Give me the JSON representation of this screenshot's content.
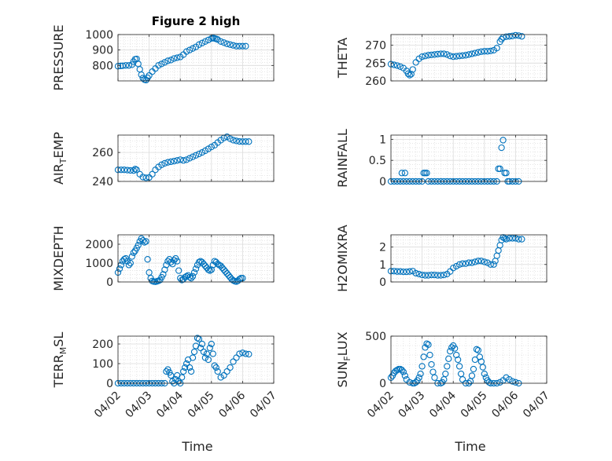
{
  "figure": {
    "title": "Figure 2 high",
    "x_ticks": [
      "04/02",
      "04/03",
      "04/04",
      "04/05",
      "04/06",
      "04/07"
    ],
    "xlabel": "Time",
    "marker_color": "#0072BD"
  },
  "chart_data": [
    {
      "type": "scatter",
      "id": "pressure",
      "title": "Figure 2 high",
      "ylabel": "PRESSURE",
      "xlabel": "",
      "xlim": [
        0,
        5
      ],
      "ylim": [
        700,
        1000
      ],
      "yticks": [
        800,
        900,
        1000
      ],
      "x": [
        0,
        0.08,
        0.15,
        0.25,
        0.35,
        0.45,
        0.5,
        0.55,
        0.6,
        0.65,
        0.7,
        0.75,
        0.8,
        0.85,
        0.9,
        0.95,
        1.0,
        1.1,
        1.2,
        1.3,
        1.4,
        1.5,
        1.6,
        1.7,
        1.8,
        1.9,
        2.0,
        2.1,
        2.2,
        2.3,
        2.4,
        2.5,
        2.6,
        2.7,
        2.8,
        2.9,
        3.0,
        3.05,
        3.1,
        3.15,
        3.2,
        3.3,
        3.4,
        3.5,
        3.6,
        3.7,
        3.8,
        3.9,
        4.0,
        4.1
      ],
      "y": [
        795,
        797,
        798,
        800,
        800,
        805,
        825,
        840,
        842,
        810,
        775,
        740,
        718,
        708,
        705,
        720,
        735,
        760,
        780,
        800,
        810,
        820,
        830,
        835,
        845,
        850,
        855,
        870,
        890,
        900,
        910,
        920,
        935,
        945,
        955,
        965,
        975,
        978,
        975,
        972,
        968,
        955,
        948,
        940,
        935,
        930,
        925,
        925,
        925,
        925
      ]
    },
    {
      "type": "scatter",
      "id": "theta",
      "title": "",
      "ylabel": "THETA",
      "xlabel": "",
      "xlim": [
        0,
        5
      ],
      "ylim": [
        260,
        273
      ],
      "yticks": [
        260,
        265,
        270
      ],
      "x": [
        0,
        0.1,
        0.2,
        0.3,
        0.4,
        0.5,
        0.55,
        0.6,
        0.65,
        0.7,
        0.8,
        0.9,
        1.0,
        1.1,
        1.2,
        1.3,
        1.4,
        1.5,
        1.6,
        1.7,
        1.8,
        1.9,
        2.0,
        2.1,
        2.2,
        2.3,
        2.4,
        2.5,
        2.6,
        2.7,
        2.8,
        2.9,
        3.0,
        3.1,
        3.2,
        3.3,
        3.4,
        3.5,
        3.55,
        3.6,
        3.7,
        3.8,
        3.9,
        4.0,
        4.1,
        4.2
      ],
      "y": [
        264.7,
        264.5,
        264.3,
        264,
        263.6,
        262.8,
        262,
        261.6,
        261.9,
        263.2,
        265.2,
        266.2,
        266.8,
        267,
        267.2,
        267.3,
        267.4,
        267.5,
        267.6,
        267.6,
        267.4,
        267,
        266.8,
        266.9,
        267,
        267.1,
        267.2,
        267.4,
        267.6,
        267.8,
        268,
        268.2,
        268.3,
        268.3,
        268.4,
        268.6,
        269.2,
        271,
        271.7,
        272.2,
        272.4,
        272.5,
        272.6,
        272.8,
        272.7,
        272.5
      ]
    },
    {
      "type": "scatter",
      "id": "air_temp",
      "title": "",
      "ylabel": "AIR_TEMP",
      "xlabel": "",
      "xlim": [
        0,
        5
      ],
      "ylim": [
        240,
        272
      ],
      "yticks": [
        240,
        260
      ],
      "x": [
        0,
        0.1,
        0.2,
        0.3,
        0.4,
        0.5,
        0.55,
        0.6,
        0.7,
        0.8,
        0.9,
        1.0,
        1.1,
        1.2,
        1.3,
        1.4,
        1.5,
        1.6,
        1.7,
        1.8,
        1.9,
        2.0,
        2.1,
        2.2,
        2.3,
        2.4,
        2.5,
        2.6,
        2.7,
        2.8,
        2.9,
        3.0,
        3.1,
        3.2,
        3.3,
        3.4,
        3.5,
        3.6,
        3.7,
        3.8,
        3.9,
        4.0,
        4.1,
        4.2
      ],
      "y": [
        248,
        248,
        248,
        247.8,
        247.6,
        247.5,
        248.5,
        248,
        245,
        243,
        242.5,
        242.7,
        245,
        248,
        250,
        251.5,
        252.5,
        253.2,
        253.6,
        254,
        254.5,
        255,
        254.5,
        255,
        256,
        257,
        258,
        259,
        260,
        261.2,
        262.5,
        263.8,
        265,
        266.8,
        268.5,
        270,
        270.8,
        269.5,
        268.5,
        268,
        267.6,
        267.5,
        267.5,
        267.5
      ]
    },
    {
      "type": "scatter",
      "id": "rainfall",
      "title": "",
      "ylabel": "RAINFALL",
      "xlabel": "",
      "xlim": [
        0,
        5
      ],
      "ylim": [
        0,
        1.1
      ],
      "yticks": [
        0,
        0.5,
        1
      ],
      "x": [
        0,
        0.1,
        0.2,
        0.3,
        0.35,
        0.4,
        0.45,
        0.5,
        0.6,
        0.7,
        0.8,
        0.9,
        1.0,
        1.05,
        1.1,
        1.15,
        1.2,
        1.3,
        1.4,
        1.5,
        1.6,
        1.7,
        1.8,
        1.9,
        2.0,
        2.1,
        2.2,
        2.3,
        2.4,
        2.5,
        2.6,
        2.7,
        2.8,
        2.9,
        3.0,
        3.1,
        3.2,
        3.3,
        3.4,
        3.45,
        3.5,
        3.55,
        3.6,
        3.65,
        3.7,
        3.75,
        3.8,
        3.9,
        4.0,
        4.1
      ],
      "y": [
        0,
        0,
        0,
        0,
        0.2,
        0,
        0.2,
        0,
        0,
        0,
        0,
        0,
        0,
        0.2,
        0.2,
        0.2,
        0,
        0,
        0,
        0,
        0,
        0,
        0,
        0,
        0,
        0,
        0,
        0,
        0,
        0,
        0,
        0,
        0,
        0,
        0,
        0,
        0,
        0,
        0,
        0.3,
        0.3,
        0.8,
        0.98,
        0.2,
        0.2,
        0,
        0,
        0,
        0,
        0
      ]
    },
    {
      "type": "scatter",
      "id": "mixdepth",
      "title": "",
      "ylabel": "MIXDEPTH",
      "xlabel": "",
      "xlim": [
        0,
        5
      ],
      "ylim": [
        0,
        2500
      ],
      "yticks": [
        0,
        1000,
        2000
      ],
      "x": [
        0,
        0.05,
        0.1,
        0.15,
        0.2,
        0.25,
        0.3,
        0.35,
        0.4,
        0.45,
        0.5,
        0.55,
        0.6,
        0.65,
        0.7,
        0.75,
        0.8,
        0.85,
        0.9,
        0.95,
        1.0,
        1.05,
        1.1,
        1.15,
        1.2,
        1.25,
        1.3,
        1.35,
        1.4,
        1.45,
        1.5,
        1.55,
        1.6,
        1.65,
        1.7,
        1.75,
        1.8,
        1.85,
        1.9,
        1.95,
        2.0,
        2.05,
        2.1,
        2.15,
        2.2,
        2.25,
        2.3,
        2.35,
        2.4,
        2.45,
        2.5,
        2.55,
        2.6,
        2.65,
        2.7,
        2.75,
        2.8,
        2.85,
        2.9,
        2.95,
        3.0,
        3.05,
        3.1,
        3.15,
        3.2,
        3.25,
        3.3,
        3.35,
        3.4,
        3.45,
        3.5,
        3.55,
        3.6,
        3.65,
        3.7,
        3.75,
        3.8,
        3.85,
        3.9,
        3.95,
        4.0
      ],
      "y": [
        500,
        700,
        900,
        1100,
        1200,
        1250,
        1100,
        900,
        1000,
        1350,
        1550,
        1650,
        1800,
        1950,
        2150,
        2300,
        2200,
        2100,
        2150,
        1200,
        500,
        200,
        50,
        20,
        10,
        30,
        60,
        100,
        250,
        400,
        650,
        900,
        1100,
        1200,
        1050,
        950,
        1150,
        1250,
        1100,
        600,
        200,
        100,
        150,
        250,
        300,
        350,
        250,
        200,
        300,
        500,
        700,
        900,
        1050,
        1100,
        1050,
        950,
        850,
        750,
        650,
        600,
        650,
        900,
        1100,
        1050,
        950,
        900,
        850,
        750,
        650,
        550,
        450,
        350,
        250,
        150,
        80,
        40,
        20,
        60,
        150,
        200,
        200
      ]
    },
    {
      "type": "scatter",
      "id": "h2omixra",
      "title": "",
      "ylabel": "H2OMIXRA",
      "xlabel": "",
      "xlim": [
        0,
        5
      ],
      "ylim": [
        0,
        2.7
      ],
      "yticks": [
        0,
        1,
        2
      ],
      "x": [
        0,
        0.1,
        0.2,
        0.3,
        0.4,
        0.5,
        0.6,
        0.7,
        0.8,
        0.9,
        1.0,
        1.1,
        1.2,
        1.3,
        1.4,
        1.5,
        1.6,
        1.7,
        1.8,
        1.9,
        2.0,
        2.1,
        2.2,
        2.3,
        2.4,
        2.5,
        2.6,
        2.7,
        2.8,
        2.9,
        3.0,
        3.1,
        3.2,
        3.3,
        3.35,
        3.4,
        3.45,
        3.5,
        3.55,
        3.6,
        3.65,
        3.7,
        3.8,
        3.9,
        4.0,
        4.1,
        4.2
      ],
      "y": [
        0.62,
        0.62,
        0.6,
        0.6,
        0.58,
        0.58,
        0.6,
        0.62,
        0.5,
        0.45,
        0.4,
        0.38,
        0.38,
        0.4,
        0.4,
        0.38,
        0.38,
        0.4,
        0.45,
        0.6,
        0.8,
        0.9,
        1.0,
        1.05,
        1.05,
        1.1,
        1.1,
        1.15,
        1.2,
        1.2,
        1.15,
        1.1,
        1.0,
        1.0,
        1.2,
        1.5,
        1.8,
        2.1,
        2.4,
        2.55,
        2.5,
        2.45,
        2.5,
        2.5,
        2.5,
        2.45,
        2.45
      ]
    },
    {
      "type": "scatter",
      "id": "terr_msl",
      "title": "",
      "ylabel": "TERR_MSL",
      "xlabel": "Time",
      "xlim": [
        0,
        5
      ],
      "ylim": [
        0,
        240
      ],
      "yticks": [
        0,
        100,
        200
      ],
      "x": [
        0,
        0.1,
        0.2,
        0.3,
        0.4,
        0.5,
        0.6,
        0.7,
        0.8,
        0.9,
        1.0,
        1.1,
        1.2,
        1.3,
        1.4,
        1.5,
        1.55,
        1.6,
        1.65,
        1.7,
        1.75,
        1.8,
        1.85,
        1.9,
        1.95,
        2.0,
        2.05,
        2.1,
        2.15,
        2.2,
        2.25,
        2.3,
        2.35,
        2.4,
        2.45,
        2.5,
        2.55,
        2.6,
        2.65,
        2.7,
        2.75,
        2.8,
        2.85,
        2.9,
        2.95,
        3.0,
        3.05,
        3.1,
        3.15,
        3.2,
        3.3,
        3.4,
        3.5,
        3.6,
        3.7,
        3.8,
        3.9,
        4.0,
        4.1,
        4.2
      ],
      "y": [
        0,
        0,
        0,
        0,
        0,
        0,
        0,
        0,
        0,
        0,
        0,
        0,
        0,
        0,
        0,
        0,
        60,
        70,
        55,
        40,
        10,
        0,
        20,
        40,
        10,
        0,
        30,
        60,
        80,
        100,
        120,
        80,
        60,
        130,
        160,
        190,
        230,
        225,
        180,
        200,
        160,
        130,
        150,
        120,
        180,
        200,
        150,
        90,
        80,
        60,
        30,
        40,
        60,
        80,
        110,
        130,
        150,
        155,
        150,
        148
      ]
    },
    {
      "type": "scatter",
      "id": "sun_flux",
      "title": "",
      "ylabel": "SUN_FLUX",
      "xlabel": "Time",
      "xlim": [
        0,
        5
      ],
      "ylim": [
        0,
        500
      ],
      "yticks": [
        0,
        500
      ],
      "x": [
        0,
        0.05,
        0.1,
        0.15,
        0.2,
        0.25,
        0.3,
        0.35,
        0.4,
        0.45,
        0.5,
        0.6,
        0.7,
        0.75,
        0.8,
        0.85,
        0.9,
        0.95,
        1.0,
        1.05,
        1.1,
        1.15,
        1.2,
        1.25,
        1.3,
        1.35,
        1.4,
        1.5,
        1.6,
        1.65,
        1.7,
        1.75,
        1.8,
        1.85,
        1.9,
        1.95,
        2.0,
        2.05,
        2.1,
        2.15,
        2.2,
        2.25,
        2.3,
        2.4,
        2.5,
        2.55,
        2.6,
        2.65,
        2.7,
        2.75,
        2.8,
        2.85,
        2.9,
        2.95,
        3.0,
        3.05,
        3.1,
        3.15,
        3.2,
        3.3,
        3.4,
        3.5,
        3.6,
        3.7,
        3.8,
        3.9,
        4.0,
        4.1
      ],
      "y": [
        60,
        80,
        110,
        130,
        140,
        150,
        150,
        140,
        120,
        80,
        40,
        10,
        0,
        0,
        10,
        30,
        60,
        100,
        180,
        280,
        380,
        420,
        410,
        300,
        200,
        120,
        60,
        0,
        0,
        10,
        40,
        100,
        180,
        260,
        340,
        380,
        400,
        370,
        300,
        250,
        180,
        100,
        40,
        0,
        0,
        20,
        80,
        150,
        250,
        360,
        350,
        280,
        230,
        170,
        100,
        60,
        30,
        10,
        0,
        0,
        0,
        10,
        30,
        60,
        40,
        20,
        10,
        0
      ]
    }
  ]
}
